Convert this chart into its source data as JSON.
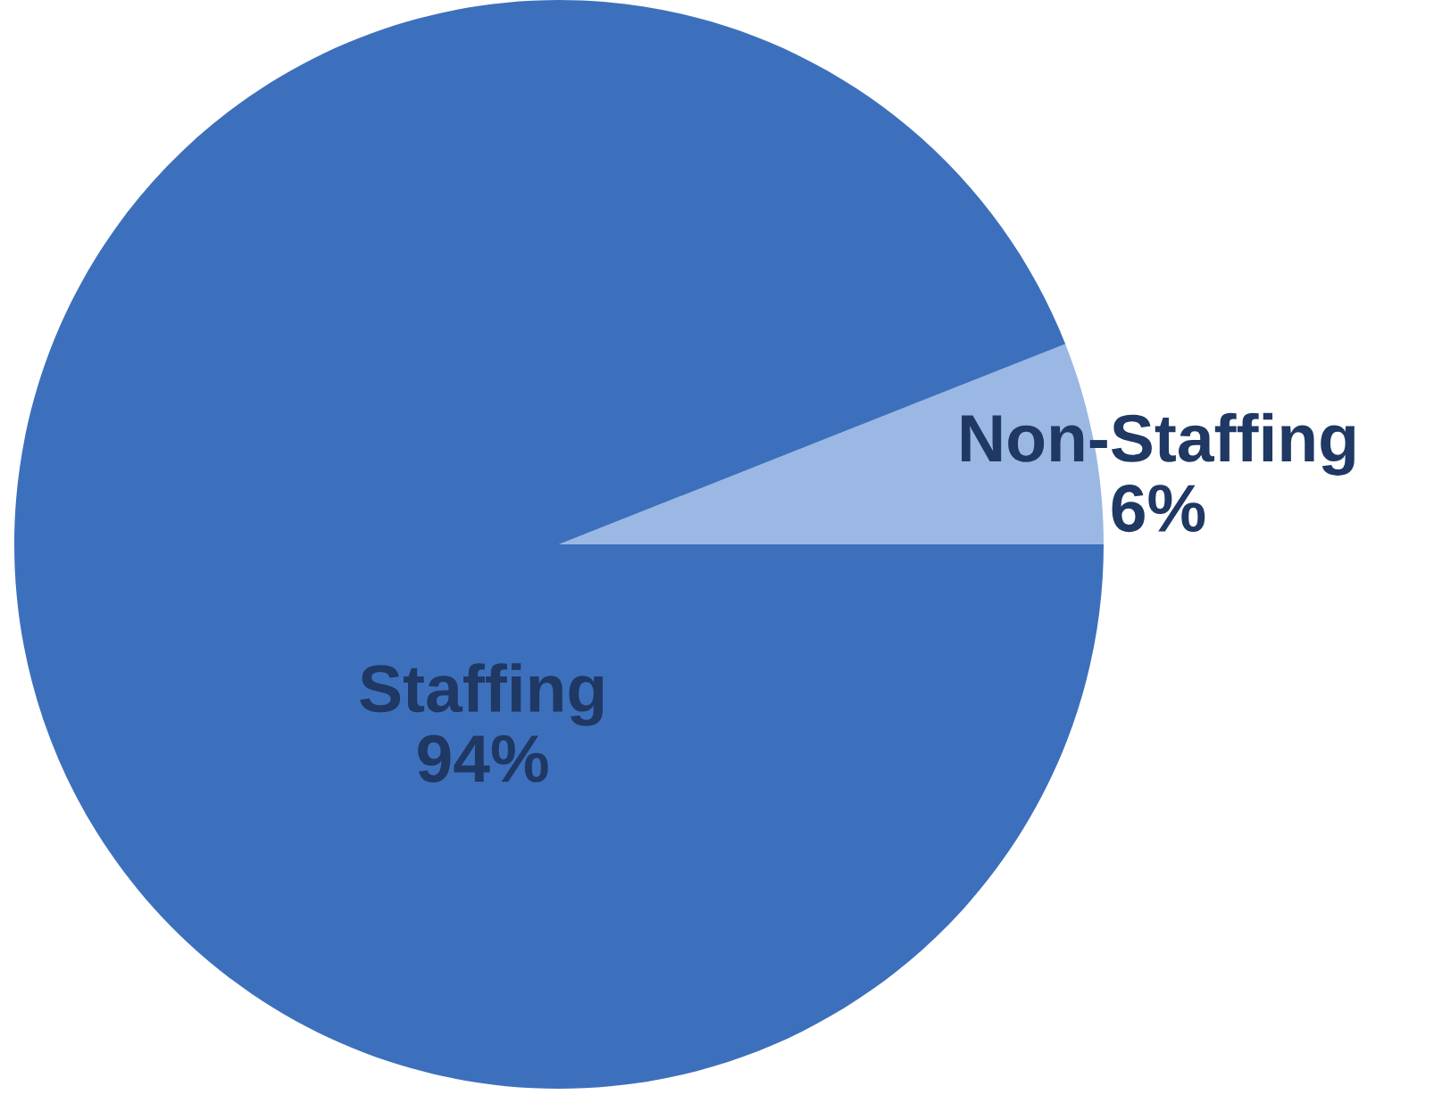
{
  "chart_data": {
    "type": "pie",
    "categories": [
      "Non-Staffing",
      "Staffing"
    ],
    "values": [
      6,
      94
    ],
    "colors": [
      "#9ab8e3",
      "#3d70bc"
    ],
    "value_labels": [
      "6%",
      "94%"
    ],
    "legend": false
  }
}
